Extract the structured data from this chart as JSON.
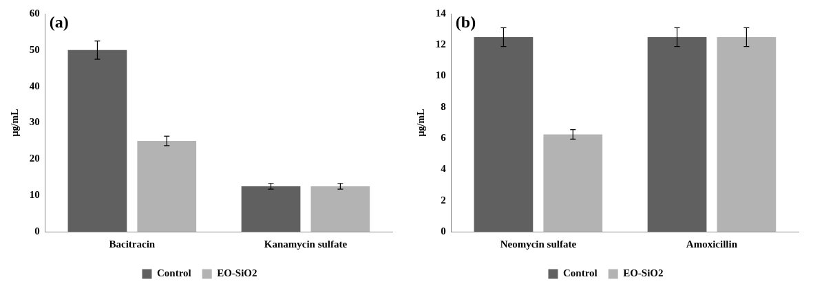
{
  "chart_data": [
    {
      "type": "bar",
      "title": "(a)",
      "ylabel": "µg/mL",
      "categories": [
        "Bacitracin",
        "Kanamycin sulfate"
      ],
      "series": [
        {
          "name": "Control",
          "color": "#606060",
          "values": [
            50,
            12.5
          ],
          "errors": [
            2.5,
            0.8
          ]
        },
        {
          "name": "EO-SiO2",
          "color": "#b3b3b3",
          "values": [
            25,
            12.5
          ],
          "errors": [
            1.3,
            0.8
          ]
        }
      ],
      "ylim": [
        0,
        60
      ],
      "yticks": [
        0,
        10,
        20,
        30,
        40,
        50,
        60
      ],
      "grid": false,
      "legend": "bottom"
    },
    {
      "type": "bar",
      "title": "(b)",
      "ylabel": "µg/mL",
      "categories": [
        "Neomycin sulfate",
        "Amoxicillin"
      ],
      "series": [
        {
          "name": "Control",
          "color": "#606060",
          "values": [
            12.5,
            12.5
          ],
          "errors": [
            0.6,
            0.6
          ]
        },
        {
          "name": "EO-SiO2",
          "color": "#b3b3b3",
          "values": [
            6.25,
            12.5
          ],
          "errors": [
            0.3,
            0.6
          ]
        }
      ],
      "ylim": [
        0,
        14
      ],
      "yticks": [
        0,
        2,
        4,
        6,
        8,
        10,
        12,
        14
      ],
      "grid": false,
      "legend": "bottom"
    }
  ]
}
